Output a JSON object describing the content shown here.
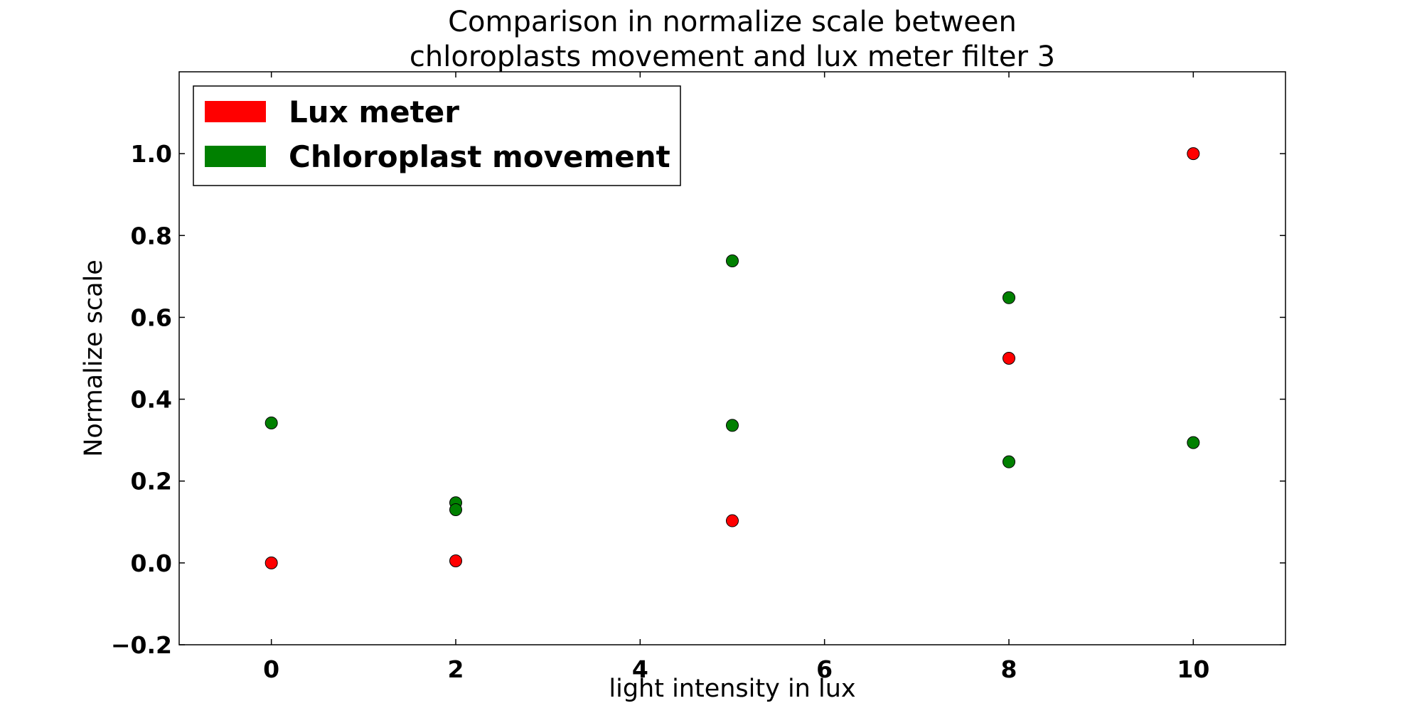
{
  "chart_data": {
    "type": "scatter",
    "title_lines": [
      "Comparison in normalize scale between",
      "chloroplasts movement and lux meter filter 3"
    ],
    "xlabel": "light intensity in lux",
    "ylabel": "Normalize scale",
    "xlim": [
      -1,
      11
    ],
    "ylim": [
      -0.2,
      1.2
    ],
    "x_ticks": [
      0,
      2,
      4,
      6,
      8,
      10
    ],
    "x_tick_labels": [
      "0",
      "2",
      "4",
      "6",
      "8",
      "10"
    ],
    "y_ticks": [
      -0.2,
      0.0,
      0.2,
      0.4,
      0.6,
      0.8,
      1.0
    ],
    "y_tick_labels": [
      "−0.2",
      "0.0",
      "0.2",
      "0.4",
      "0.6",
      "0.8",
      "1.0"
    ],
    "grid": false,
    "legend_position": "top-left",
    "series": [
      {
        "name": "Lux meter",
        "color": "#ff0000",
        "points": [
          {
            "x": 0,
            "y": 0.0
          },
          {
            "x": 2,
            "y": 0.005
          },
          {
            "x": 5,
            "y": 0.103
          },
          {
            "x": 8,
            "y": 0.5
          },
          {
            "x": 10,
            "y": 1.0
          }
        ]
      },
      {
        "name": "Chloroplast movement",
        "color": "#008000",
        "points": [
          {
            "x": 0,
            "y": 0.342
          },
          {
            "x": 2,
            "y": 0.147
          },
          {
            "x": 2,
            "y": 0.13
          },
          {
            "x": 5,
            "y": 0.738
          },
          {
            "x": 5,
            "y": 0.336
          },
          {
            "x": 8,
            "y": 0.648
          },
          {
            "x": 8,
            "y": 0.247
          },
          {
            "x": 10,
            "y": 0.294
          }
        ]
      }
    ]
  }
}
